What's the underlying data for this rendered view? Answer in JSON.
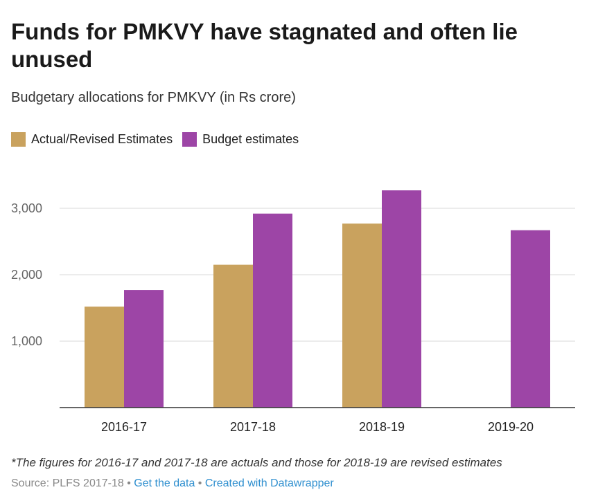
{
  "chart_data": {
    "type": "bar",
    "title": "Funds for PMKVY have stagnated and often lie unused",
    "subtitle": "Budgetary allocations for PMKVY (in Rs crore)",
    "categories": [
      "2016-17",
      "2017-18",
      "2018-19",
      "2019-20"
    ],
    "series": [
      {
        "name": "Actual/Revised Estimates",
        "color": "#c9a25e",
        "values": [
          1520,
          2150,
          2770,
          null
        ]
      },
      {
        "name": "Budget estimates",
        "color": "#9d45a6",
        "values": [
          1770,
          2920,
          3270,
          2670
        ]
      }
    ],
    "ylim": [
      0,
      3600
    ],
    "yticks": [
      1000,
      2000,
      3000
    ],
    "ytick_labels": [
      "1,000",
      "2,000",
      "3,000"
    ],
    "grid": true,
    "legend_position": "top-left"
  },
  "note": "*The figures for 2016-17 and 2017-18 are actuals and those for 2018-19 are revised estimates",
  "footer": {
    "source": "Source: PLFS 2017-18",
    "separator": "•",
    "get_data": "Get the data",
    "created_with": "Created with Datawrapper"
  }
}
